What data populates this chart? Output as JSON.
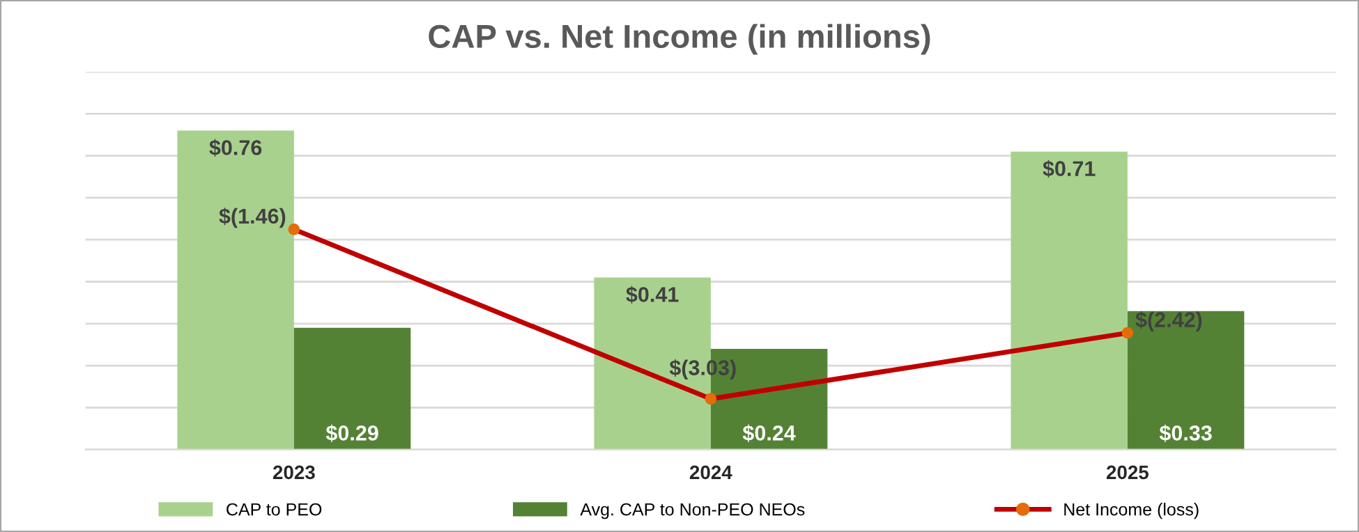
{
  "chart_data": {
    "type": "bar",
    "title": "CAP vs. Net Income (in millions)",
    "categories": [
      "2023",
      "2024",
      "2025"
    ],
    "series": [
      {
        "name": "CAP to PEO",
        "color": "#a9d18e",
        "values": [
          0.76,
          0.41,
          0.71
        ],
        "value_labels": [
          "$0.76",
          "$0.41",
          "$0.71"
        ]
      },
      {
        "name": "Avg. CAP to Non-PEO NEOs",
        "color": "#548235",
        "values": [
          0.29,
          0.24,
          0.33
        ],
        "value_labels": [
          "$0.29",
          "$0.24",
          "$0.33"
        ]
      },
      {
        "name": "Net Income (loss)",
        "type": "line",
        "axis": "y2",
        "color": "#c00000",
        "marker": "circle",
        "values": [
          -1.46,
          -3.03,
          -2.42
        ],
        "value_labels": [
          "$(1.46)",
          "$(3.03)",
          "$(2.42)"
        ]
      }
    ],
    "ylim": [
      0,
      0.9
    ],
    "yticks": [
      {
        "value": 0,
        "label": null
      },
      {
        "value": 0.1,
        "label": null
      },
      {
        "value": 0.2,
        "label": null
      },
      {
        "value": 0.3,
        "label": null
      },
      {
        "value": 0.4,
        "label": null
      },
      {
        "value": 0.5,
        "label": null
      },
      {
        "value": 0.6,
        "label": null
      },
      {
        "value": 0.7,
        "label": null
      },
      {
        "value": 0.8,
        "label": null
      },
      {
        "value": 0.9,
        "label": null
      }
    ],
    "y2lim": [
      -3.5,
      0
    ],
    "grid": "y",
    "legend": "bottom",
    "tick_labels": "x"
  }
}
